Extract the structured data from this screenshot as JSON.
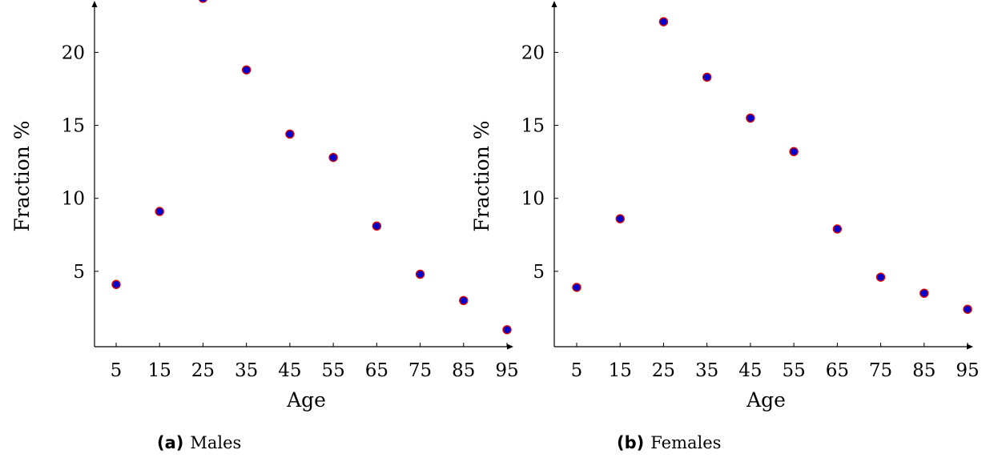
{
  "chart_data": [
    {
      "type": "scatter",
      "caption_letter": "(a)",
      "caption_text": "Males",
      "xlabel": "Age",
      "ylabel": "Fraction %",
      "x": [
        5,
        15,
        25,
        35,
        45,
        55,
        65,
        75,
        85,
        95
      ],
      "y": [
        4.1,
        9.1,
        23.7,
        18.8,
        14.4,
        12.8,
        8.1,
        4.8,
        3.0,
        1.0
      ],
      "x_ticks": [
        5,
        15,
        25,
        35,
        45,
        55,
        65,
        75,
        85,
        95
      ],
      "y_ticks": [
        5,
        10,
        15,
        20
      ],
      "xlim": [
        0,
        95
      ],
      "ylim": [
        -0.3,
        24
      ],
      "marker_fill": "#0000cc",
      "marker_edge": "#dd0000",
      "grid": false
    },
    {
      "type": "scatter",
      "caption_letter": "(b)",
      "caption_text": "Females",
      "xlabel": "Age",
      "ylabel": "Fraction %",
      "x": [
        5,
        15,
        25,
        35,
        45,
        55,
        65,
        75,
        85,
        95
      ],
      "y": [
        3.9,
        8.6,
        22.1,
        18.3,
        15.5,
        13.2,
        7.9,
        4.6,
        3.5,
        2.4
      ],
      "x_ticks": [
        5,
        15,
        25,
        35,
        45,
        55,
        65,
        75,
        85,
        95
      ],
      "y_ticks": [
        5,
        10,
        15,
        20
      ],
      "xlim": [
        0,
        95
      ],
      "ylim": [
        -0.3,
        24
      ],
      "marker_fill": "#0000cc",
      "marker_edge": "#dd0000",
      "grid": false
    }
  ]
}
